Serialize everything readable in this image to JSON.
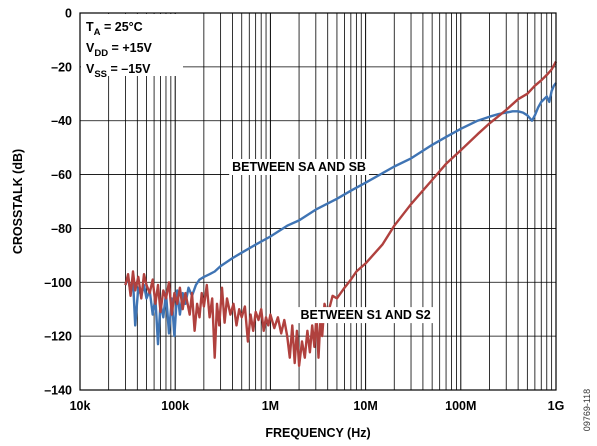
{
  "chart_data": {
    "type": "line",
    "title": "",
    "xlabel": "FREQUENCY (Hz)",
    "ylabel": "CROSSTALK (dB)",
    "x_scale": "log",
    "xlim": [
      10000,
      1000000000
    ],
    "ylim": [
      -140,
      0
    ],
    "x_ticks": [
      {
        "value": 10000,
        "label": "10k"
      },
      {
        "value": 100000,
        "label": "100k"
      },
      {
        "value": 1000000,
        "label": "1M"
      },
      {
        "value": 10000000,
        "label": "10M"
      },
      {
        "value": 100000000,
        "label": "100M"
      },
      {
        "value": 1000000000,
        "label": "1G"
      }
    ],
    "y_ticks": [
      {
        "value": 0,
        "label": "0"
      },
      {
        "value": -20,
        "label": "–20"
      },
      {
        "value": -40,
        "label": "–40"
      },
      {
        "value": -60,
        "label": "–60"
      },
      {
        "value": -80,
        "label": "–80"
      },
      {
        "value": -100,
        "label": "–100"
      },
      {
        "value": -120,
        "label": "–120"
      },
      {
        "value": -140,
        "label": "–140"
      }
    ],
    "grid": true,
    "conditions": {
      "ta": {
        "main": "T",
        "sub": "A",
        "rest": " = 25°C"
      },
      "vdd": {
        "main": "V",
        "sub": "DD",
        "rest": " = +15V"
      },
      "vss": {
        "main": "V",
        "sub": "SS",
        "rest": " = –15V"
      }
    },
    "series": [
      {
        "name": "BETWEEN SA AND SB",
        "color": "#3f74b4",
        "points": [
          [
            30000,
            -101
          ],
          [
            32000,
            -98
          ],
          [
            34000,
            -104
          ],
          [
            36000,
            -99
          ],
          [
            38000,
            -116
          ],
          [
            41000,
            -102
          ],
          [
            44000,
            -105
          ],
          [
            47000,
            -101
          ],
          [
            50000,
            -106
          ],
          [
            54000,
            -103
          ],
          [
            58000,
            -112
          ],
          [
            62000,
            -106
          ],
          [
            66000,
            -123
          ],
          [
            70000,
            -108
          ],
          [
            75000,
            -113
          ],
          [
            80000,
            -104
          ],
          [
            86000,
            -119
          ],
          [
            92000,
            -106
          ],
          [
            98000,
            -120
          ],
          [
            105000,
            -103
          ],
          [
            112000,
            -112
          ],
          [
            120000,
            -104
          ],
          [
            128000,
            -108
          ],
          [
            138000,
            -102
          ],
          [
            150000,
            -105
          ],
          [
            165000,
            -101
          ],
          [
            180000,
            -99
          ],
          [
            200000,
            -98
          ],
          [
            230000,
            -97
          ],
          [
            260000,
            -96
          ],
          [
            300000,
            -94
          ],
          [
            400000,
            -91
          ],
          [
            500000,
            -89
          ],
          [
            700000,
            -86
          ],
          [
            1000000,
            -83
          ],
          [
            1500000,
            -79
          ],
          [
            2000000,
            -77
          ],
          [
            3000000,
            -73
          ],
          [
            5000000,
            -69
          ],
          [
            7000000,
            -66
          ],
          [
            10000000,
            -63
          ],
          [
            20000000,
            -57
          ],
          [
            30000000,
            -54
          ],
          [
            50000000,
            -49
          ],
          [
            70000000,
            -46
          ],
          [
            100000000,
            -43
          ],
          [
            150000000,
            -40
          ],
          [
            200000000,
            -38.5
          ],
          [
            250000000,
            -37.5
          ],
          [
            300000000,
            -37
          ],
          [
            350000000,
            -36.5
          ],
          [
            400000000,
            -36.5
          ],
          [
            450000000,
            -37
          ],
          [
            500000000,
            -38
          ],
          [
            560000000,
            -40
          ],
          [
            600000000,
            -38
          ],
          [
            650000000,
            -35
          ],
          [
            700000000,
            -33
          ],
          [
            800000000,
            -31
          ],
          [
            850000000,
            -33
          ],
          [
            900000000,
            -29
          ],
          [
            950000000,
            -27
          ],
          [
            1000000000,
            -26
          ]
        ]
      },
      {
        "name": "BETWEEN S1 AND S2",
        "color": "#b0413e",
        "points": [
          [
            30000,
            -101
          ],
          [
            32000,
            -97
          ],
          [
            34000,
            -105
          ],
          [
            36000,
            -96
          ],
          [
            38000,
            -103
          ],
          [
            41000,
            -98
          ],
          [
            44000,
            -106
          ],
          [
            47000,
            -97
          ],
          [
            50000,
            -101
          ],
          [
            54000,
            -104
          ],
          [
            58000,
            -99
          ],
          [
            62000,
            -108
          ],
          [
            66000,
            -101
          ],
          [
            70000,
            -111
          ],
          [
            75000,
            -103
          ],
          [
            80000,
            -106
          ],
          [
            86000,
            -100
          ],
          [
            92000,
            -112
          ],
          [
            98000,
            -104
          ],
          [
            105000,
            -108
          ],
          [
            112000,
            -102
          ],
          [
            120000,
            -110
          ],
          [
            128000,
            -104
          ],
          [
            135000,
            -108
          ],
          [
            142000,
            -112
          ],
          [
            150000,
            -104
          ],
          [
            160000,
            -118
          ],
          [
            170000,
            -108
          ],
          [
            180000,
            -113
          ],
          [
            190000,
            -104
          ],
          [
            200000,
            -109
          ],
          [
            215000,
            -101
          ],
          [
            230000,
            -113
          ],
          [
            245000,
            -106
          ],
          [
            260000,
            -128
          ],
          [
            275000,
            -108
          ],
          [
            290000,
            -116
          ],
          [
            310000,
            -102
          ],
          [
            330000,
            -115
          ],
          [
            350000,
            -106
          ],
          [
            380000,
            -112
          ],
          [
            410000,
            -108
          ],
          [
            440000,
            -116
          ],
          [
            470000,
            -110
          ],
          [
            500000,
            -113
          ],
          [
            540000,
            -109
          ],
          [
            580000,
            -122
          ],
          [
            620000,
            -112
          ],
          [
            660000,
            -118
          ],
          [
            700000,
            -111
          ],
          [
            750000,
            -114
          ],
          [
            800000,
            -110
          ],
          [
            850000,
            -118
          ],
          [
            900000,
            -113
          ],
          [
            950000,
            -116
          ],
          [
            1000000,
            -112
          ],
          [
            1100000,
            -117
          ],
          [
            1200000,
            -113
          ],
          [
            1300000,
            -119
          ],
          [
            1400000,
            -114
          ],
          [
            1500000,
            -120
          ],
          [
            1600000,
            -128
          ],
          [
            1700000,
            -116
          ],
          [
            1800000,
            -130
          ],
          [
            1900000,
            -118
          ],
          [
            2000000,
            -131
          ],
          [
            2150000,
            -122
          ],
          [
            2300000,
            -128
          ],
          [
            2450000,
            -118
          ],
          [
            2600000,
            -126
          ],
          [
            2750000,
            -116
          ],
          [
            2900000,
            -124
          ],
          [
            3050000,
            -112
          ],
          [
            3200000,
            -128
          ],
          [
            3350000,
            -114
          ],
          [
            3500000,
            -120
          ],
          [
            3700000,
            -108
          ],
          [
            4000000,
            -112
          ],
          [
            4500000,
            -105
          ],
          [
            5000000,
            -106
          ],
          [
            6000000,
            -102
          ],
          [
            7000000,
            -99
          ],
          [
            8000000,
            -96
          ],
          [
            10000000,
            -93
          ],
          [
            15000000,
            -86
          ],
          [
            20000000,
            -79
          ],
          [
            30000000,
            -71
          ],
          [
            50000000,
            -62
          ],
          [
            70000000,
            -56
          ],
          [
            100000000,
            -51
          ],
          [
            150000000,
            -45
          ],
          [
            200000000,
            -41
          ],
          [
            300000000,
            -36
          ],
          [
            400000000,
            -32
          ],
          [
            500000000,
            -30
          ],
          [
            600000000,
            -27
          ],
          [
            700000000,
            -25
          ],
          [
            800000000,
            -23
          ],
          [
            900000000,
            -21
          ],
          [
            1000000000,
            -18
          ]
        ]
      }
    ],
    "annotations": [
      {
        "text": "BETWEEN SA AND SB",
        "x": 2000000,
        "y": -57
      },
      {
        "text": "BETWEEN S1 AND S2",
        "x": 10000000,
        "y": -112
      }
    ]
  },
  "figure_id": "09769-118"
}
